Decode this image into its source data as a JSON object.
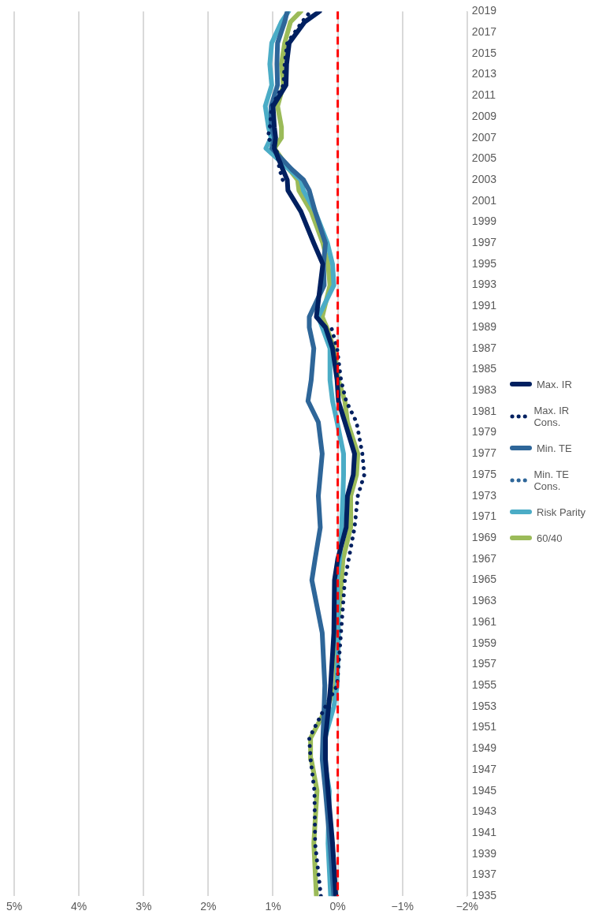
{
  "chart_data": {
    "type": "line",
    "x": [
      1935,
      1940,
      1945,
      1948,
      1950,
      1953,
      1955,
      1960,
      1965,
      1967,
      1970,
      1973,
      1975,
      1977,
      1980,
      1982,
      1984,
      1987,
      1989,
      1990,
      1993,
      1995,
      1997,
      2000,
      2002,
      2003,
      2004,
      2006,
      2007,
      2008,
      2010,
      2012,
      2014,
      2016,
      2018,
      2019
    ],
    "orientation": "horizontal",
    "ylim": [
      1935,
      2019
    ],
    "yticks": [
      1935,
      1937,
      1939,
      1941,
      1943,
      1945,
      1947,
      1949,
      1951,
      1953,
      1955,
      1957,
      1959,
      1961,
      1963,
      1965,
      1967,
      1969,
      1971,
      1973,
      1975,
      1977,
      1979,
      1981,
      1983,
      1985,
      1987,
      1989,
      1991,
      1993,
      1995,
      1997,
      1999,
      2001,
      2003,
      2005,
      2007,
      2009,
      2011,
      2013,
      2015,
      2017,
      2019
    ],
    "xlim": [
      5,
      -2
    ],
    "xticks": [
      {
        "value": -2,
        "label": "−2%"
      },
      {
        "value": -1,
        "label": "−1%"
      },
      {
        "value": 0,
        "label": "0%"
      },
      {
        "value": 1,
        "label": "1%"
      },
      {
        "value": 2,
        "label": "2%"
      },
      {
        "value": 3,
        "label": "3%"
      },
      {
        "value": 4,
        "label": "4%"
      },
      {
        "value": 5,
        "label": "5%"
      }
    ],
    "grid": "x",
    "legend": "right",
    "marker": "none",
    "ref_lines": [
      {
        "axis": "x",
        "value": 0,
        "color": "#ff0000",
        "line_style": "dashed"
      }
    ],
    "series": [
      {
        "name": "Max. IR",
        "color": "#002060",
        "line_style": "solid",
        "values": [
          0.03,
          0.08,
          0.15,
          0.19,
          0.19,
          0.14,
          0.11,
          0.06,
          0.05,
          0.0,
          -0.13,
          -0.15,
          -0.24,
          -0.26,
          -0.11,
          -0.01,
          0.01,
          0.08,
          0.19,
          0.33,
          0.27,
          0.23,
          0.37,
          0.57,
          0.77,
          0.78,
          0.85,
          0.98,
          0.96,
          0.98,
          1.0,
          0.8,
          0.79,
          0.75,
          0.51,
          0.28
        ]
      },
      {
        "name": "Max. IR Cons.",
        "color": "#002060",
        "line_style": "dotted",
        "values": [
          0.26,
          0.35,
          0.36,
          0.42,
          0.44,
          0.19,
          0.01,
          -0.05,
          -0.11,
          -0.17,
          -0.26,
          -0.31,
          -0.41,
          -0.38,
          -0.29,
          -0.13,
          -0.05,
          0.01,
          0.1,
          null,
          null,
          null,
          null,
          null,
          null,
          0.85,
          0.9,
          0.95,
          1.08,
          1.05,
          1.02,
          0.84,
          0.82,
          0.78,
          0.55,
          0.42
        ]
      },
      {
        "name": "Min. TE",
        "color": "#2e6699",
        "line_style": "solid",
        "values": [
          0.06,
          0.12,
          0.19,
          0.24,
          0.23,
          0.21,
          0.2,
          0.24,
          0.4,
          0.35,
          0.27,
          0.3,
          0.27,
          0.24,
          0.3,
          0.46,
          0.41,
          0.37,
          0.44,
          0.44,
          0.21,
          0.22,
          0.19,
          0.35,
          0.44,
          0.53,
          0.71,
          1.02,
          0.98,
          1.02,
          1.03,
          0.93,
          0.94,
          0.93,
          0.82,
          0.78
        ]
      },
      {
        "name": "Min. TE Cons.",
        "color": "#2e6699",
        "line_style": "dotted",
        "values": [
          null,
          null,
          null,
          null,
          null,
          null,
          null,
          null,
          null,
          null,
          null,
          null,
          null,
          null,
          null,
          null,
          null,
          null,
          null,
          null,
          null,
          null,
          null,
          null,
          null,
          null,
          null,
          null,
          null,
          null,
          null,
          null,
          null,
          null,
          null,
          null
        ]
      },
      {
        "name": "Risk Parity",
        "color": "#4bacc6",
        "line_style": "solid",
        "values": [
          0.11,
          0.15,
          0.13,
          0.21,
          0.2,
          0.06,
          0.01,
          -0.01,
          0.01,
          -0.03,
          -0.06,
          -0.08,
          -0.09,
          -0.09,
          0.01,
          0.08,
          0.12,
          0.12,
          0.24,
          0.3,
          0.06,
          0.08,
          0.16,
          0.35,
          0.53,
          0.57,
          0.75,
          1.11,
          1.03,
          1.07,
          1.12,
          1.02,
          1.05,
          1.02,
          0.87,
          0.76
        ]
      },
      {
        "name": "60/40",
        "color": "#9bbb59",
        "line_style": "solid",
        "values": [
          0.33,
          0.37,
          0.32,
          0.41,
          0.42,
          0.16,
          0.03,
          0.01,
          -0.06,
          -0.08,
          -0.2,
          -0.2,
          -0.29,
          -0.31,
          -0.15,
          -0.11,
          -0.01,
          0.06,
          0.17,
          0.24,
          0.12,
          0.15,
          0.23,
          0.41,
          0.6,
          0.62,
          0.75,
          0.98,
          0.87,
          0.87,
          0.93,
          0.84,
          0.87,
          0.82,
          0.73,
          0.57
        ]
      }
    ]
  }
}
